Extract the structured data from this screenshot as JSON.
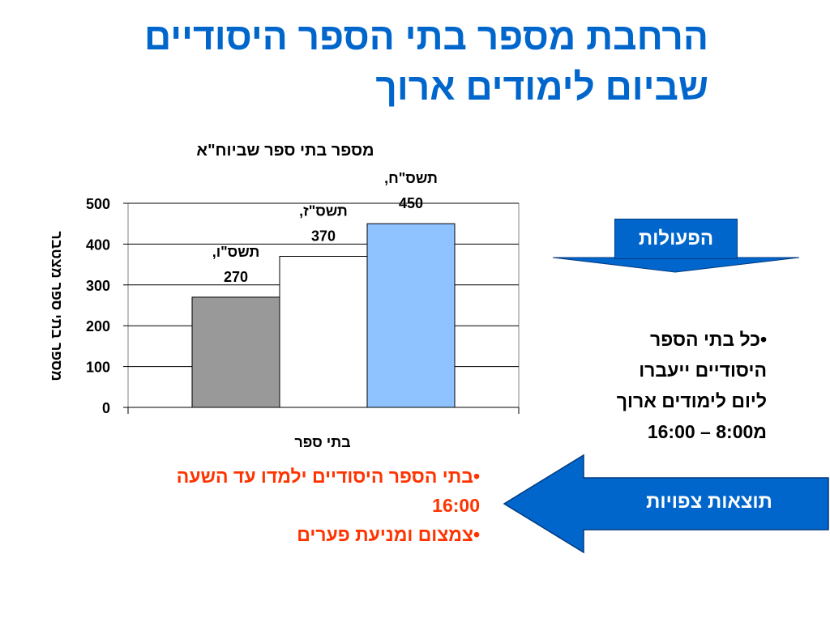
{
  "title": {
    "line1": "הרחבת מספר בתי הספר היסודיים",
    "line2": "שביום לימודים ארוך"
  },
  "chart_data": {
    "type": "bar",
    "title": "מספר בתי ספר שביוח\"א",
    "xlabel": "בתי ספר",
    "ylabel": "מספר בתי ספר מצטבר",
    "ylim": [
      0,
      500
    ],
    "yticks": [
      0,
      100,
      200,
      300,
      400,
      500
    ],
    "grid": true,
    "categories": [
      "תשס\"ו",
      "תשס\"ז",
      "תשס\"ח"
    ],
    "values": [
      270,
      370,
      450
    ],
    "data_labels": [
      {
        "line1": "תשס\"ו,",
        "line2": "270"
      },
      {
        "line1": "תשס\"ז,",
        "line2": "370"
      },
      {
        "line1": "תשס\"ח,",
        "line2": "450"
      }
    ],
    "colors": [
      "#999999",
      "#ffffff",
      "#8fc3ff"
    ]
  },
  "actions": {
    "label": "הפעולות",
    "color": "#0066cc"
  },
  "actions_bullets": [
    "•כל בתי הספר",
    "היסודיים ייעברו",
    "ליום לימודים ארוך",
    "מ8:00 – 16:00"
  ],
  "results": {
    "label": "תוצאות צפויות",
    "color": "#0066cc"
  },
  "results_bullets": {
    "color": "#ff3300",
    "lines": [
      "•בתי הספר היסודיים ילמדו עד השעה",
      "16:00",
      "•צמצום ומניעת פערים"
    ]
  }
}
